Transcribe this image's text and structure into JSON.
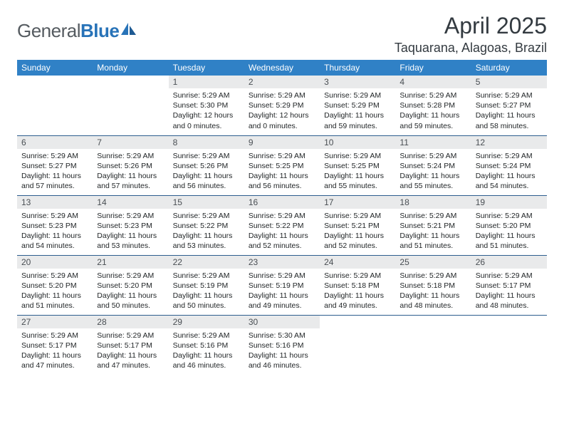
{
  "logo": {
    "part1": "General",
    "part2": "Blue"
  },
  "title": "April 2025",
  "location": "Taquarana, Alagoas, Brazil",
  "colors": {
    "header_bg": "#3081c6",
    "header_text": "#ffffff",
    "daynum_bg": "#e9eaeb",
    "row_border": "#2e5e8f",
    "body_text": "#222628",
    "logo_gray": "#555b60",
    "logo_blue": "#2873b8"
  },
  "weekdays": [
    "Sunday",
    "Monday",
    "Tuesday",
    "Wednesday",
    "Thursday",
    "Friday",
    "Saturday"
  ],
  "layout": {
    "first_weekday_index": 2,
    "days_in_month": 30
  },
  "days": {
    "1": {
      "sunrise": "5:29 AM",
      "sunset": "5:30 PM",
      "daylight": "12 hours and 0 minutes."
    },
    "2": {
      "sunrise": "5:29 AM",
      "sunset": "5:29 PM",
      "daylight": "12 hours and 0 minutes."
    },
    "3": {
      "sunrise": "5:29 AM",
      "sunset": "5:29 PM",
      "daylight": "11 hours and 59 minutes."
    },
    "4": {
      "sunrise": "5:29 AM",
      "sunset": "5:28 PM",
      "daylight": "11 hours and 59 minutes."
    },
    "5": {
      "sunrise": "5:29 AM",
      "sunset": "5:27 PM",
      "daylight": "11 hours and 58 minutes."
    },
    "6": {
      "sunrise": "5:29 AM",
      "sunset": "5:27 PM",
      "daylight": "11 hours and 57 minutes."
    },
    "7": {
      "sunrise": "5:29 AM",
      "sunset": "5:26 PM",
      "daylight": "11 hours and 57 minutes."
    },
    "8": {
      "sunrise": "5:29 AM",
      "sunset": "5:26 PM",
      "daylight": "11 hours and 56 minutes."
    },
    "9": {
      "sunrise": "5:29 AM",
      "sunset": "5:25 PM",
      "daylight": "11 hours and 56 minutes."
    },
    "10": {
      "sunrise": "5:29 AM",
      "sunset": "5:25 PM",
      "daylight": "11 hours and 55 minutes."
    },
    "11": {
      "sunrise": "5:29 AM",
      "sunset": "5:24 PM",
      "daylight": "11 hours and 55 minutes."
    },
    "12": {
      "sunrise": "5:29 AM",
      "sunset": "5:24 PM",
      "daylight": "11 hours and 54 minutes."
    },
    "13": {
      "sunrise": "5:29 AM",
      "sunset": "5:23 PM",
      "daylight": "11 hours and 54 minutes."
    },
    "14": {
      "sunrise": "5:29 AM",
      "sunset": "5:23 PM",
      "daylight": "11 hours and 53 minutes."
    },
    "15": {
      "sunrise": "5:29 AM",
      "sunset": "5:22 PM",
      "daylight": "11 hours and 53 minutes."
    },
    "16": {
      "sunrise": "5:29 AM",
      "sunset": "5:22 PM",
      "daylight": "11 hours and 52 minutes."
    },
    "17": {
      "sunrise": "5:29 AM",
      "sunset": "5:21 PM",
      "daylight": "11 hours and 52 minutes."
    },
    "18": {
      "sunrise": "5:29 AM",
      "sunset": "5:21 PM",
      "daylight": "11 hours and 51 minutes."
    },
    "19": {
      "sunrise": "5:29 AM",
      "sunset": "5:20 PM",
      "daylight": "11 hours and 51 minutes."
    },
    "20": {
      "sunrise": "5:29 AM",
      "sunset": "5:20 PM",
      "daylight": "11 hours and 51 minutes."
    },
    "21": {
      "sunrise": "5:29 AM",
      "sunset": "5:20 PM",
      "daylight": "11 hours and 50 minutes."
    },
    "22": {
      "sunrise": "5:29 AM",
      "sunset": "5:19 PM",
      "daylight": "11 hours and 50 minutes."
    },
    "23": {
      "sunrise": "5:29 AM",
      "sunset": "5:19 PM",
      "daylight": "11 hours and 49 minutes."
    },
    "24": {
      "sunrise": "5:29 AM",
      "sunset": "5:18 PM",
      "daylight": "11 hours and 49 minutes."
    },
    "25": {
      "sunrise": "5:29 AM",
      "sunset": "5:18 PM",
      "daylight": "11 hours and 48 minutes."
    },
    "26": {
      "sunrise": "5:29 AM",
      "sunset": "5:17 PM",
      "daylight": "11 hours and 48 minutes."
    },
    "27": {
      "sunrise": "5:29 AM",
      "sunset": "5:17 PM",
      "daylight": "11 hours and 47 minutes."
    },
    "28": {
      "sunrise": "5:29 AM",
      "sunset": "5:17 PM",
      "daylight": "11 hours and 47 minutes."
    },
    "29": {
      "sunrise": "5:29 AM",
      "sunset": "5:16 PM",
      "daylight": "11 hours and 46 minutes."
    },
    "30": {
      "sunrise": "5:30 AM",
      "sunset": "5:16 PM",
      "daylight": "11 hours and 46 minutes."
    }
  },
  "labels": {
    "sunrise": "Sunrise: ",
    "sunset": "Sunset: ",
    "daylight": "Daylight: "
  }
}
